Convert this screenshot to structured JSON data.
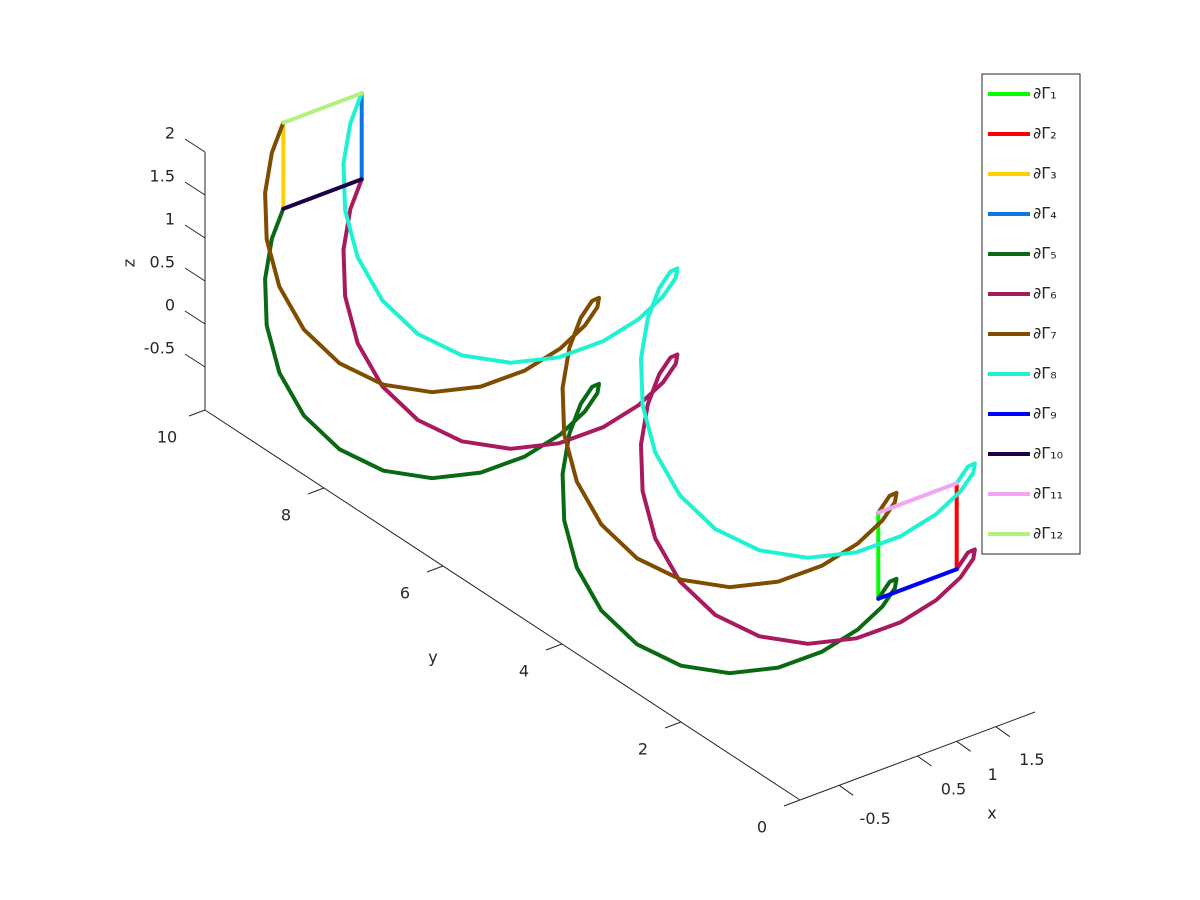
{
  "chart_data": {
    "type": "line3d",
    "x_label": "x",
    "y_label": "y",
    "z_label": "z",
    "xlim": [
      -1,
      2
    ],
    "ylim": [
      0,
      10
    ],
    "zlim": [
      -1,
      2
    ],
    "xticks": [
      -0.5,
      0.5,
      1,
      1.5
    ],
    "yticks": [
      0,
      2,
      4,
      6,
      8,
      10
    ],
    "zticks": [
      -0.5,
      0,
      0.5,
      1,
      1.5,
      2
    ],
    "legend": "top-right",
    "series": [
      {
        "name": "∂Γ₁",
        "color": "#00ff00",
        "x": [
          0,
          0
        ],
        "y": [
          0,
          0
        ],
        "z": [
          1,
          2
        ]
      },
      {
        "name": "∂Γ₂",
        "color": "#ff0000",
        "x": [
          1,
          1
        ],
        "y": [
          0,
          0
        ],
        "z": [
          1,
          2
        ]
      },
      {
        "name": "∂Γ₃",
        "color": "#ffd000",
        "x": [
          0,
          0
        ],
        "y": [
          10,
          10
        ],
        "z": [
          1,
          2
        ]
      },
      {
        "name": "∂Γ₄",
        "color": "#0a78e0",
        "x": [
          1,
          1
        ],
        "y": [
          10,
          10
        ],
        "z": [
          1,
          2
        ]
      },
      {
        "name": "∂Γ₅",
        "color": "#0a6a14",
        "x": [
          0,
          0.383,
          0.707,
          0.924,
          1,
          0.924,
          0.707,
          0.383,
          0,
          -0.383,
          -0.707,
          -0.924,
          -1,
          -0.924,
          -0.707,
          -0.383,
          0,
          0.383,
          0.707,
          0.924,
          1,
          0.924,
          0.707,
          0.383,
          0,
          -0.383,
          -0.707,
          -0.924,
          -1,
          -0.924,
          -0.707,
          -0.383,
          0
        ],
        "y": [
          0,
          0.3125,
          0.625,
          0.9375,
          1.25,
          1.5625,
          1.875,
          2.1875,
          2.5,
          2.8125,
          3.125,
          3.4375,
          3.75,
          4.0625,
          4.375,
          4.6875,
          5,
          5.3125,
          5.625,
          5.9375,
          6.25,
          6.5625,
          6.875,
          7.1875,
          7.5,
          7.8125,
          8.125,
          8.4375,
          8.75,
          9.0625,
          9.375,
          9.6875,
          10
        ],
        "z": [
          1,
          0.924,
          0.707,
          0.383,
          0,
          -0.383,
          -0.707,
          -0.924,
          -1,
          -0.924,
          -0.707,
          -0.383,
          0,
          0.383,
          0.707,
          0.924,
          1,
          0.924,
          0.707,
          0.383,
          0,
          -0.383,
          -0.707,
          -0.924,
          -1,
          -0.924,
          -0.707,
          -0.383,
          0,
          0.383,
          0.707,
          0.924,
          1
        ]
      },
      {
        "name": "∂Γ₆",
        "color": "#a8195e",
        "x": [
          1,
          1.383,
          1.707,
          1.924,
          2,
          1.924,
          1.707,
          1.383,
          1,
          0.617,
          0.293,
          0.076,
          0,
          0.076,
          0.293,
          0.617,
          1,
          1.383,
          1.707,
          1.924,
          2,
          1.924,
          1.707,
          1.383,
          1,
          0.617,
          0.293,
          0.076,
          0,
          0.076,
          0.293,
          0.617,
          1
        ],
        "y": [
          0,
          0.3125,
          0.625,
          0.9375,
          1.25,
          1.5625,
          1.875,
          2.1875,
          2.5,
          2.8125,
          3.125,
          3.4375,
          3.75,
          4.0625,
          4.375,
          4.6875,
          5,
          5.3125,
          5.625,
          5.9375,
          6.25,
          6.5625,
          6.875,
          7.1875,
          7.5,
          7.8125,
          8.125,
          8.4375,
          8.75,
          9.0625,
          9.375,
          9.6875,
          10
        ],
        "z": [
          1,
          0.924,
          0.707,
          0.383,
          0,
          -0.383,
          -0.707,
          -0.924,
          -1,
          -0.924,
          -0.707,
          -0.383,
          0,
          0.383,
          0.707,
          0.924,
          1,
          0.924,
          0.707,
          0.383,
          0,
          -0.383,
          -0.707,
          -0.924,
          -1,
          -0.924,
          -0.707,
          -0.383,
          0,
          0.383,
          0.707,
          0.924,
          1
        ]
      },
      {
        "name": "∂Γ₇",
        "color": "#7f4c00",
        "x": [
          0,
          0.383,
          0.707,
          0.924,
          1,
          0.924,
          0.707,
          0.383,
          0,
          -0.383,
          -0.707,
          -0.924,
          -1,
          -0.924,
          -0.707,
          -0.383,
          0,
          0.383,
          0.707,
          0.924,
          1,
          0.924,
          0.707,
          0.383,
          0,
          -0.383,
          -0.707,
          -0.924,
          -1,
          -0.924,
          -0.707,
          -0.383,
          0
        ],
        "y": [
          0,
          0.3125,
          0.625,
          0.9375,
          1.25,
          1.5625,
          1.875,
          2.1875,
          2.5,
          2.8125,
          3.125,
          3.4375,
          3.75,
          4.0625,
          4.375,
          4.6875,
          5,
          5.3125,
          5.625,
          5.9375,
          6.25,
          6.5625,
          6.875,
          7.1875,
          7.5,
          7.8125,
          8.125,
          8.4375,
          8.75,
          9.0625,
          9.375,
          9.6875,
          10
        ],
        "z": [
          2,
          1.924,
          1.707,
          1.383,
          1,
          0.617,
          0.293,
          0.076,
          0,
          0.076,
          0.293,
          0.617,
          1,
          1.383,
          1.707,
          1.924,
          2,
          1.924,
          1.707,
          1.383,
          1,
          0.617,
          0.293,
          0.076,
          0,
          0.076,
          0.293,
          0.617,
          1,
          1.383,
          1.707,
          1.924,
          2
        ]
      },
      {
        "name": "∂Γ₈",
        "color": "#1ef2d2",
        "x": [
          1,
          1.383,
          1.707,
          1.924,
          2,
          1.924,
          1.707,
          1.383,
          1,
          0.617,
          0.293,
          0.076,
          0,
          0.076,
          0.293,
          0.617,
          1,
          1.383,
          1.707,
          1.924,
          2,
          1.924,
          1.707,
          1.383,
          1,
          0.617,
          0.293,
          0.076,
          0,
          0.076,
          0.293,
          0.617,
          1
        ],
        "y": [
          0,
          0.3125,
          0.625,
          0.9375,
          1.25,
          1.5625,
          1.875,
          2.1875,
          2.5,
          2.8125,
          3.125,
          3.4375,
          3.75,
          4.0625,
          4.375,
          4.6875,
          5,
          5.3125,
          5.625,
          5.9375,
          6.25,
          6.5625,
          6.875,
          7.1875,
          7.5,
          7.8125,
          8.125,
          8.4375,
          8.75,
          9.0625,
          9.375,
          9.6875,
          10
        ],
        "z": [
          2,
          1.924,
          1.707,
          1.383,
          1,
          0.617,
          0.293,
          0.076,
          0,
          0.076,
          0.293,
          0.617,
          1,
          1.383,
          1.707,
          1.924,
          2,
          1.924,
          1.707,
          1.383,
          1,
          0.617,
          0.293,
          0.076,
          0,
          0.076,
          0.293,
          0.617,
          1,
          1.383,
          1.707,
          1.924,
          2
        ]
      },
      {
        "name": "∂Γ₉",
        "color": "#0000ff",
        "x": [
          0,
          1
        ],
        "y": [
          0,
          0
        ],
        "z": [
          1,
          1
        ]
      },
      {
        "name": "∂Γ₁₀",
        "color": "#1c0048",
        "x": [
          0,
          1
        ],
        "y": [
          10,
          10
        ],
        "z": [
          1,
          1
        ]
      },
      {
        "name": "∂Γ₁₁",
        "color": "#f2a6f2",
        "x": [
          0,
          1
        ],
        "y": [
          0,
          0
        ],
        "z": [
          2,
          2
        ]
      },
      {
        "name": "∂Γ₁₂",
        "color": "#b4f07c",
        "x": [
          0,
          1
        ],
        "y": [
          10,
          10
        ],
        "z": [
          2,
          2
        ]
      }
    ]
  }
}
